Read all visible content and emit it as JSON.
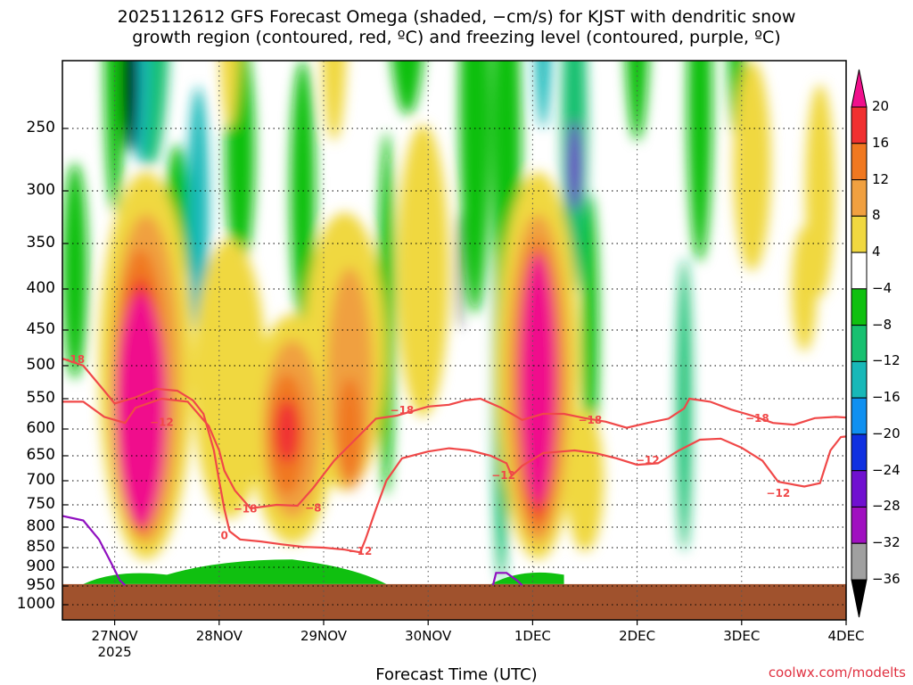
{
  "header": {
    "title_line1": "2025112612 GFS Forecast Omega (shaded, −cm/s) for KJST with dendritic snow",
    "title_line2": "growth region (contoured, red, ºC) and freezing level (contoured, purple, ºC)"
  },
  "footer": {
    "xlabel": "Forecast Time (UTC)",
    "credit": "coolwx.com/modelts"
  },
  "chart_data": {
    "type": "heatmap",
    "x_tick_labels": [
      "27NOV",
      "28NOV",
      "29NOV",
      "30NOV",
      "1DEC",
      "2DEC",
      "3DEC",
      "4DEC"
    ],
    "x_tick_sublabel": "2025",
    "x_range_days": [
      26.5,
      34
    ],
    "y_tick_labels": [
      "250",
      "300",
      "350",
      "400",
      "450",
      "500",
      "550",
      "600",
      "650",
      "700",
      "750",
      "800",
      "850",
      "900",
      "950",
      "1000"
    ],
    "y_range_hpa": [
      200,
      1020
    ],
    "colorbar_labels": [
      "20",
      "16",
      "12",
      "8",
      "4",
      "−4",
      "−8",
      "−12",
      "−16",
      "−20",
      "−24",
      "−28",
      "−32",
      "−36"
    ],
    "colorbar_colors": [
      "#f0108c",
      "#f03030",
      "#f07820",
      "#f0a040",
      "#f0d840",
      "#ffffff",
      "#10c010",
      "#18c070",
      "#18b8b8",
      "#1090f0",
      "#1030e0",
      "#7010d0",
      "#a010c0",
      "#a0a0a0",
      "#000000"
    ],
    "terrain_color": "#a0522d",
    "surface_pressure_hpa": 945,
    "contour_labels": [
      {
        "text": "−18",
        "day": 26.6,
        "p": 492
      },
      {
        "text": "−12",
        "day": 27.45,
        "p": 590
      },
      {
        "text": "−18",
        "day": 28.25,
        "p": 760
      },
      {
        "text": "0",
        "day": 28.05,
        "p": 822
      },
      {
        "text": "−8",
        "day": 28.9,
        "p": 758
      },
      {
        "text": "−12",
        "day": 29.35,
        "p": 860
      },
      {
        "text": "−18",
        "day": 29.75,
        "p": 570
      },
      {
        "text": "−12",
        "day": 30.72,
        "p": 690
      },
      {
        "text": "−18",
        "day": 31.55,
        "p": 586
      },
      {
        "text": "−12",
        "day": 32.1,
        "p": 660
      },
      {
        "text": "−18",
        "day": 33.15,
        "p": 583
      },
      {
        "text": "−12",
        "day": 33.35,
        "p": 727
      }
    ],
    "dgz_contour_upper": [
      [
        26.5,
        555
      ],
      [
        26.7,
        555
      ],
      [
        26.9,
        580
      ],
      [
        27.1,
        590
      ],
      [
        27.2,
        565
      ],
      [
        27.45,
        550
      ],
      [
        27.7,
        555
      ],
      [
        27.9,
        595
      ],
      [
        28.0,
        640
      ],
      [
        28.05,
        680
      ],
      [
        28.15,
        720
      ],
      [
        28.3,
        758
      ],
      [
        28.55,
        750
      ],
      [
        28.75,
        752
      ],
      [
        28.9,
        715
      ],
      [
        29.1,
        660
      ],
      [
        29.3,
        620
      ],
      [
        29.5,
        583
      ],
      [
        29.7,
        578
      ],
      [
        30.0,
        563
      ],
      [
        30.2,
        560
      ],
      [
        30.35,
        553
      ],
      [
        30.5,
        550
      ],
      [
        30.7,
        565
      ],
      [
        30.9,
        585
      ],
      [
        31.1,
        575
      ],
      [
        31.3,
        575
      ],
      [
        31.5,
        582
      ],
      [
        31.7,
        588
      ],
      [
        31.9,
        598
      ],
      [
        32.1,
        590
      ],
      [
        32.3,
        583
      ],
      [
        32.45,
        566
      ],
      [
        32.5,
        550
      ],
      [
        32.7,
        555
      ],
      [
        32.9,
        568
      ],
      [
        33.1,
        578
      ],
      [
        33.3,
        590
      ],
      [
        33.5,
        593
      ],
      [
        33.7,
        582
      ],
      [
        33.9,
        580
      ],
      [
        34.0,
        581
      ]
    ],
    "dgz_contour_lower": [
      [
        26.5,
        490
      ],
      [
        26.7,
        500
      ],
      [
        26.9,
        538
      ],
      [
        27.0,
        558
      ],
      [
        27.2,
        548
      ],
      [
        27.4,
        535
      ],
      [
        27.6,
        538
      ],
      [
        27.75,
        553
      ],
      [
        27.85,
        575
      ],
      [
        27.95,
        640
      ],
      [
        28.0,
        700
      ],
      [
        28.05,
        760
      ],
      [
        28.1,
        810
      ],
      [
        28.2,
        830
      ],
      [
        28.4,
        835
      ],
      [
        28.6,
        842
      ],
      [
        28.8,
        848
      ],
      [
        29.0,
        850
      ],
      [
        29.2,
        855
      ],
      [
        29.35,
        862
      ],
      [
        29.4,
        830
      ],
      [
        29.5,
        760
      ],
      [
        29.6,
        700
      ],
      [
        29.75,
        655
      ],
      [
        30.0,
        642
      ],
      [
        30.2,
        636
      ],
      [
        30.4,
        640
      ],
      [
        30.6,
        650
      ],
      [
        30.75,
        665
      ],
      [
        30.8,
        690
      ],
      [
        30.9,
        670
      ],
      [
        31.1,
        645
      ],
      [
        31.4,
        640
      ],
      [
        31.6,
        645
      ],
      [
        31.8,
        655
      ],
      [
        32.0,
        668
      ],
      [
        32.2,
        665
      ],
      [
        32.4,
        640
      ],
      [
        32.6,
        620
      ],
      [
        32.8,
        618
      ],
      [
        33.0,
        635
      ],
      [
        33.2,
        660
      ],
      [
        33.35,
        702
      ],
      [
        33.6,
        712
      ],
      [
        33.75,
        705
      ],
      [
        33.85,
        640
      ],
      [
        33.95,
        615
      ],
      [
        34.0,
        614
      ]
    ],
    "freezing_level": [
      [
        26.5,
        775
      ],
      [
        26.7,
        785
      ],
      [
        26.85,
        830
      ],
      [
        26.95,
        880
      ],
      [
        27.05,
        935
      ],
      [
        27.1,
        948
      ]
    ],
    "freezing_level_2": [
      [
        30.62,
        948
      ],
      [
        30.65,
        915
      ],
      [
        30.75,
        915
      ],
      [
        30.85,
        935
      ],
      [
        30.9,
        948
      ]
    ],
    "omega_blobs": [
      {
        "value": 20,
        "day": 27.25,
        "p": 570,
        "wd": 0.25,
        "hp": 230
      },
      {
        "value": 16,
        "day": 28.65,
        "p": 605,
        "wd": 0.12,
        "hp": 60
      },
      {
        "value": 20,
        "day": 31.05,
        "p": 520,
        "wd": 0.18,
        "hp": 230
      },
      {
        "value": -36,
        "day": 27.15,
        "p": 215,
        "wd": 0.07,
        "hp": 55
      },
      {
        "value": -36,
        "day": 30.3,
        "p": 380,
        "wd": 0.02,
        "hp": 70
      },
      {
        "value": -28,
        "day": 31.4,
        "p": 280,
        "wd": 0.06,
        "hp": 40
      }
    ]
  }
}
